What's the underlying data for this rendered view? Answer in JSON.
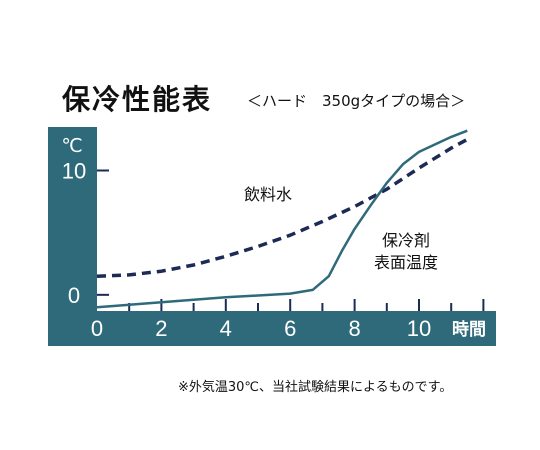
{
  "header": {
    "title": "保冷性能表",
    "subtitle": "＜ハード　350gタイプの場合＞"
  },
  "footnote": "※外気温30℃、当社試験結果によるものです。",
  "colors": {
    "frame": "#2e6a7a",
    "plot_bg": "#ffffff",
    "beverage_line": "#1c2a55",
    "surface_line": "#2e6a7a",
    "axis_text": "#ffffff"
  },
  "chart_data": {
    "type": "line",
    "title": "保冷性能表",
    "subtitle": "＜ハード　350gタイプの場合＞",
    "xlabel": "時間",
    "ylabel": "℃",
    "xlim": [
      0,
      12
    ],
    "ylim": [
      -1.3,
      13.5
    ],
    "x_ticks": [
      0,
      2,
      4,
      6,
      8,
      10
    ],
    "x_tick_labels": [
      "0",
      "2",
      "4",
      "6",
      "8",
      "10"
    ],
    "y_ticks": [
      0,
      10
    ],
    "y_tick_labels": [
      "0",
      "10"
    ],
    "grid": false,
    "series": [
      {
        "name": "飲料水",
        "style": "dashed",
        "color": "#1c2a55",
        "x": [
          0,
          1,
          2,
          3,
          4,
          5,
          6,
          7,
          8,
          9,
          10,
          11,
          11.5
        ],
        "y": [
          1.5,
          1.6,
          1.9,
          2.4,
          3.1,
          3.9,
          4.8,
          5.9,
          7.1,
          8.5,
          10.2,
          11.8,
          12.5
        ]
      },
      {
        "name": "保冷剤\n表面温度",
        "label_lines": [
          "保冷剤",
          "表面温度"
        ],
        "style": "solid",
        "color": "#2e6a7a",
        "x": [
          0,
          1,
          2,
          3,
          4,
          5,
          6,
          6.7,
          7.2,
          7.6,
          8,
          8.5,
          9,
          9.5,
          10,
          10.5,
          11,
          11.5
        ],
        "y": [
          -1.0,
          -0.8,
          -0.6,
          -0.4,
          -0.2,
          -0.05,
          0.1,
          0.4,
          1.5,
          3.5,
          5.3,
          7.2,
          9.0,
          10.5,
          11.5,
          12.1,
          12.7,
          13.2
        ]
      }
    ]
  }
}
